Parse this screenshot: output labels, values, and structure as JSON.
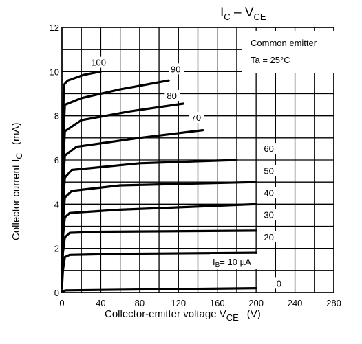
{
  "chart_data": {
    "type": "line",
    "title_main": "I",
    "title_sub1": "C",
    "title_mid": " – V",
    "title_sub2": "CE",
    "ylabel_main": "Collector current   I",
    "ylabel_sub": "C",
    "ylabel_unit": "(mA)",
    "xlabel_main": "Collector-emitter voltage   V",
    "xlabel_sub": "CE",
    "xlabel_unit": "(V)",
    "xlim": [
      0,
      280
    ],
    "ylim": [
      0,
      12
    ],
    "xticks": [
      "0",
      "40",
      "80",
      "120",
      "160",
      "200",
      "240",
      "280"
    ],
    "yticks": [
      "0",
      "2",
      "4",
      "6",
      "8",
      "10",
      "12"
    ],
    "annotation_line1": "Common emitter",
    "annotation_line2": "Ta = 25°C",
    "legend_prefix": "I",
    "legend_sub": "B",
    "series": [
      {
        "label": "0",
        "points": [
          [
            0,
            0.05
          ],
          [
            4,
            0.1
          ],
          [
            200,
            0.2
          ]
        ]
      },
      {
        "label": "= 10 µA",
        "points": [
          [
            0,
            0.2
          ],
          [
            1,
            1.0
          ],
          [
            3,
            1.6
          ],
          [
            8,
            1.7
          ],
          [
            60,
            1.75
          ],
          [
            200,
            1.8
          ]
        ]
      },
      {
        "label": "20",
        "points": [
          [
            0,
            0.3
          ],
          [
            1,
            1.8
          ],
          [
            3,
            2.5
          ],
          [
            8,
            2.7
          ],
          [
            40,
            2.75
          ],
          [
            200,
            2.8
          ]
        ]
      },
      {
        "label": "30",
        "points": [
          [
            0,
            0.4
          ],
          [
            1,
            2.5
          ],
          [
            3,
            3.4
          ],
          [
            8,
            3.6
          ],
          [
            60,
            3.75
          ],
          [
            200,
            4.0
          ]
        ]
      },
      {
        "label": "40",
        "points": [
          [
            0,
            0.5
          ],
          [
            1,
            3.2
          ],
          [
            3,
            4.3
          ],
          [
            10,
            4.6
          ],
          [
            60,
            4.85
          ],
          [
            200,
            5.0
          ]
        ]
      },
      {
        "label": "50",
        "points": [
          [
            0,
            0.6
          ],
          [
            1,
            4.0
          ],
          [
            3,
            5.2
          ],
          [
            10,
            5.55
          ],
          [
            80,
            5.85
          ],
          [
            180,
            6.0
          ]
        ]
      },
      {
        "label": "60",
        "points": [
          [
            0,
            0.7
          ],
          [
            1,
            4.8
          ],
          [
            3,
            6.2
          ],
          [
            15,
            6.6
          ],
          [
            80,
            7.0
          ],
          [
            145,
            7.35
          ]
        ]
      },
      {
        "label": "70",
        "points": [
          [
            0,
            0.8
          ],
          [
            1,
            5.5
          ],
          [
            3,
            7.3
          ],
          [
            20,
            7.8
          ],
          [
            70,
            8.2
          ],
          [
            125,
            8.55
          ]
        ]
      },
      {
        "label": "80",
        "points": [
          [
            0,
            0.9
          ],
          [
            1,
            6.5
          ],
          [
            3,
            8.5
          ],
          [
            20,
            8.8
          ],
          [
            60,
            9.2
          ],
          [
            110,
            9.6
          ]
        ]
      },
      {
        "label": "90",
        "points": [
          [
            0,
            1.0
          ],
          [
            1,
            7.3
          ],
          [
            2,
            9.4
          ],
          [
            6,
            9.6
          ],
          [
            22,
            9.85
          ],
          [
            40,
            10.0
          ]
        ]
      }
    ],
    "curve_labels": [
      {
        "text": "100",
        "x": 30,
        "y": 10.3
      },
      {
        "text": "90",
        "x": 112,
        "y": 10.0
      },
      {
        "text": "80",
        "x": 108,
        "y": 8.8
      },
      {
        "text": "70",
        "x": 133,
        "y": 7.8
      },
      {
        "text": "60",
        "x": 208,
        "y": 6.4
      },
      {
        "text": "50",
        "x": 208,
        "y": 5.4
      },
      {
        "text": "40",
        "x": 208,
        "y": 4.4
      },
      {
        "text": "30",
        "x": 208,
        "y": 3.4
      },
      {
        "text": "20",
        "x": 208,
        "y": 2.4
      },
      {
        "text": "0",
        "x": 221,
        "y": 0.3
      }
    ]
  }
}
